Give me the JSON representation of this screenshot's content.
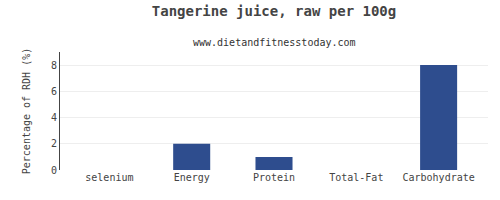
{
  "chart_data": {
    "type": "bar",
    "title": "Tangerine juice, raw per 100g",
    "subtitle": "www.dietandfitnesstoday.com",
    "categories": [
      "selenium",
      "Energy",
      "Protein",
      "Total-Fat",
      "Carbohydrate"
    ],
    "values": [
      0,
      2,
      1,
      0,
      8
    ],
    "color": "#2e4d8e",
    "ylabel": "Percentage of RDH (%)",
    "ylim": [
      0,
      9
    ],
    "yticks": [
      0,
      2,
      4,
      6,
      8
    ],
    "grid": true
  }
}
